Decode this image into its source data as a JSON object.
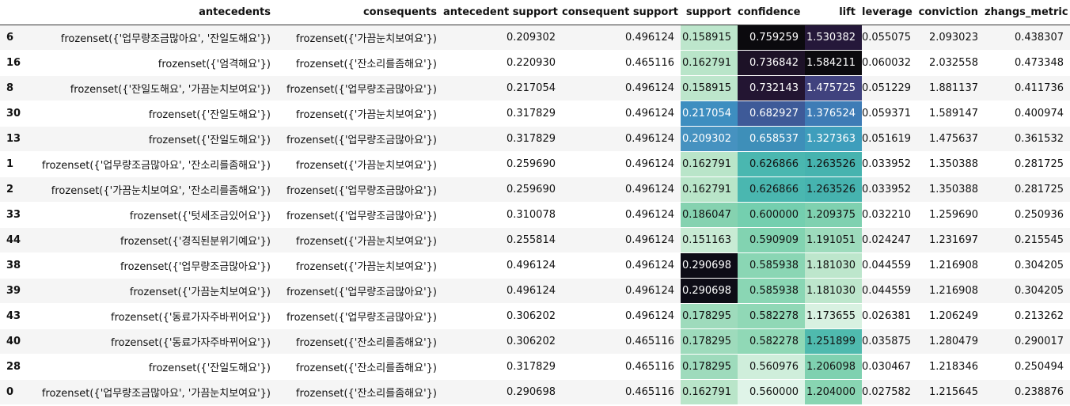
{
  "columns": [
    "",
    "antecedents",
    "consequents",
    "antecedent support",
    "consequent support",
    "support",
    "confidence",
    "lift",
    "leverage",
    "conviction",
    "zhangs_metric"
  ],
  "rows": [
    [
      "6",
      "frozenset({'업무량조금많아요', '잔일도해요'})",
      "frozenset({'가끔눈치보여요'})",
      "0.209302",
      "0.496124",
      "0.158915",
      "0.759259",
      "1.530382",
      "0.055075",
      "2.093023",
      "0.438307"
    ],
    [
      "16",
      "frozenset({'엄격해요'})",
      "frozenset({'잔소리를좀해요'})",
      "0.220930",
      "0.465116",
      "0.162791",
      "0.736842",
      "1.584211",
      "0.060032",
      "2.032558",
      "0.473348"
    ],
    [
      "8",
      "frozenset({'잔일도해요', '가끔눈치보여요'})",
      "frozenset({'업무량조금많아요'})",
      "0.217054",
      "0.496124",
      "0.158915",
      "0.732143",
      "1.475725",
      "0.051229",
      "1.881137",
      "0.411736"
    ],
    [
      "30",
      "frozenset({'잔일도해요'})",
      "frozenset({'가끔눈치보여요'})",
      "0.317829",
      "0.496124",
      "0.217054",
      "0.682927",
      "1.376524",
      "0.059371",
      "1.589147",
      "0.400974"
    ],
    [
      "13",
      "frozenset({'잔일도해요'})",
      "frozenset({'업무량조금많아요'})",
      "0.317829",
      "0.496124",
      "0.209302",
      "0.658537",
      "1.327363",
      "0.051619",
      "1.475637",
      "0.361532"
    ],
    [
      "1",
      "frozenset({'업무량조금많아요', '잔소리를좀해요'})",
      "frozenset({'가끔눈치보여요'})",
      "0.259690",
      "0.496124",
      "0.162791",
      "0.626866",
      "1.263526",
      "0.033952",
      "1.350388",
      "0.281725"
    ],
    [
      "2",
      "frozenset({'가끔눈치보여요', '잔소리를좀해요'})",
      "frozenset({'업무량조금많아요'})",
      "0.259690",
      "0.496124",
      "0.162791",
      "0.626866",
      "1.263526",
      "0.033952",
      "1.350388",
      "0.281725"
    ],
    [
      "33",
      "frozenset({'텃세조금있어요'})",
      "frozenset({'업무량조금많아요'})",
      "0.310078",
      "0.496124",
      "0.186047",
      "0.600000",
      "1.209375",
      "0.032210",
      "1.259690",
      "0.250936"
    ],
    [
      "44",
      "frozenset({'경직된분위기예요'})",
      "frozenset({'가끔눈치보여요'})",
      "0.255814",
      "0.496124",
      "0.151163",
      "0.590909",
      "1.191051",
      "0.024247",
      "1.231697",
      "0.215545"
    ],
    [
      "38",
      "frozenset({'업무량조금많아요'})",
      "frozenset({'가끔눈치보여요'})",
      "0.496124",
      "0.496124",
      "0.290698",
      "0.585938",
      "1.181030",
      "0.044559",
      "1.216908",
      "0.304205"
    ],
    [
      "39",
      "frozenset({'가끔눈치보여요'})",
      "frozenset({'업무량조금많아요'})",
      "0.496124",
      "0.496124",
      "0.290698",
      "0.585938",
      "1.181030",
      "0.044559",
      "1.216908",
      "0.304205"
    ],
    [
      "43",
      "frozenset({'동료가자주바뀌어요'})",
      "frozenset({'업무량조금많아요'})",
      "0.306202",
      "0.496124",
      "0.178295",
      "0.582278",
      "1.173655",
      "0.026381",
      "1.206249",
      "0.213262"
    ],
    [
      "40",
      "frozenset({'동료가자주바뀌어요'})",
      "frozenset({'잔소리를좀해요'})",
      "0.306202",
      "0.465116",
      "0.178295",
      "0.582278",
      "1.251899",
      "0.035875",
      "1.280479",
      "0.290017"
    ],
    [
      "28",
      "frozenset({'잔일도해요'})",
      "frozenset({'잔소리를좀해요'})",
      "0.317829",
      "0.465116",
      "0.178295",
      "0.560976",
      "1.206098",
      "0.030467",
      "1.218346",
      "0.250494"
    ],
    [
      "0",
      "frozenset({'업무량조금많아요', '가끔눈치보여요'})",
      "frozenset({'잔소리를좀해요'})",
      "0.290698",
      "0.465116",
      "0.162791",
      "0.560000",
      "1.204000",
      "0.027582",
      "1.215645",
      "0.238876"
    ]
  ],
  "heatmap_colors": {
    "support": [
      "#bde6cc",
      "#b9e5c9",
      "#bde6cc",
      "#3e8ec0",
      "#4692c0",
      "#b9e5c9",
      "#b9e5c9",
      "#85d2b0",
      "#c8ebd4",
      "#0d0c16",
      "#0d0c16",
      "#9edbbc",
      "#9edbbc",
      "#9edbbc",
      "#b9e5c9"
    ],
    "confidence": [
      "#0b0a0e",
      "#1d1227",
      "#231532",
      "#3e5a98",
      "#3e8fb9",
      "#4ab7b0",
      "#4ab7b0",
      "#74cfaf",
      "#82d3b1",
      "#8ad6b4",
      "#8ad6b4",
      "#90d8b6",
      "#90d8b6",
      "#cfeedb",
      "#dff4e8"
    ],
    "lift": [
      "#25183a",
      "#0b0a0e",
      "#40427e",
      "#3e7cb6",
      "#3e9ebc",
      "#46b3af",
      "#46b3af",
      "#7fd1b0",
      "#9ddbbc",
      "#bde6cc",
      "#bde6cc",
      "#d8f1e1",
      "#4fbaae",
      "#7fd1b0",
      "#88d5b2"
    ]
  }
}
